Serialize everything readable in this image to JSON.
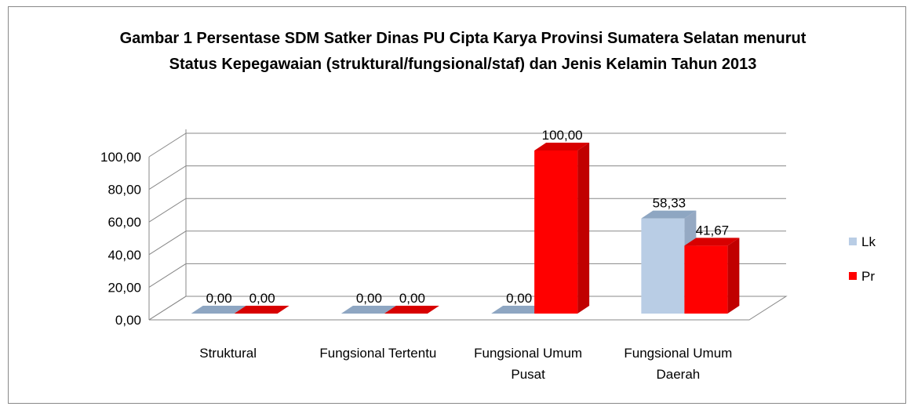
{
  "chart_data": {
    "type": "bar3d",
    "title": "Gambar 1 Persentase SDM Satker Dinas PU Cipta Karya Provinsi Sumatera Selatan menurut Status Kepegawaian (struktural/fungsional/staf) dan Jenis Kelamin  Tahun 2013",
    "categories": [
      "Struktural",
      "Fungsional Tertentu",
      "Fungsional Umum Pusat",
      "Fungsional Umum Daerah"
    ],
    "series": [
      {
        "name": "Lk",
        "color": "#b9cde5",
        "values": [
          0,
          0,
          0,
          58.33
        ],
        "value_labels": [
          "0,00",
          "0,00",
          "0,00",
          "58,33"
        ]
      },
      {
        "name": "Pr",
        "color": "#ff0000",
        "values": [
          0,
          0,
          100,
          41.67
        ],
        "value_labels": [
          "0,00",
          "0,00",
          "100,00",
          "41,67"
        ]
      }
    ],
    "ylim": [
      0,
      100
    ],
    "yticks": [
      {
        "value": 0,
        "label": "0,00"
      },
      {
        "value": 20,
        "label": "20,00"
      },
      {
        "value": 40,
        "label": "40,00"
      },
      {
        "value": 60,
        "label": "60,00"
      },
      {
        "value": 80,
        "label": "80,00"
      },
      {
        "value": 100,
        "label": "100,00"
      }
    ],
    "grid": true,
    "legend": "right"
  }
}
